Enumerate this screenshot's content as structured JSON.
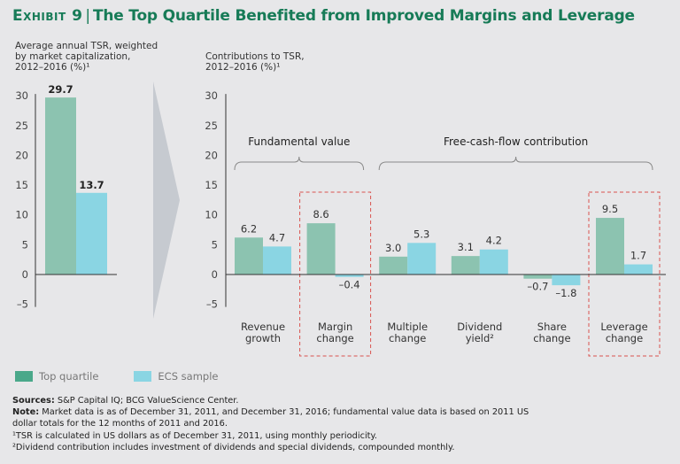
{
  "header": {
    "exhibit": "Exhibit 9",
    "separator": "|",
    "title": "The Top Quartile Benefited from Improved Margins and Leverage"
  },
  "colors": {
    "top_quartile": "#8cc3b0",
    "ecs_sample": "#8ad5e3",
    "title_green": "#177b57",
    "highlight_box": "#d9534f",
    "chevron": "#c6cad0",
    "axis": "#333333"
  },
  "left_subtitle": "Average annual TSR, weighted\nby market capitalization,\n2012–2016 (%)¹",
  "right_subtitle": "Contributions to TSR,\n2012–2016 (%)¹",
  "legend": [
    {
      "label": "Top quartile",
      "color_key": "top_quartile"
    },
    {
      "label": "ECS sample",
      "color_key": "ecs_sample"
    }
  ],
  "chart_data": [
    {
      "type": "bar",
      "title": "Average annual TSR, weighted by market capitalization, 2012–2016 (%)¹",
      "xlabel": "",
      "ylabel": "",
      "ylim": [
        -5,
        30
      ],
      "yticks": [
        30,
        25,
        20,
        15,
        10,
        5,
        0,
        -5
      ],
      "ytick_labels": [
        "30",
        "25",
        "20",
        "15",
        "10",
        "5",
        "0",
        "–5"
      ],
      "categories": [
        ""
      ],
      "series": [
        {
          "name": "Top quartile",
          "values": [
            29.7
          ],
          "labels": [
            "29.7"
          ]
        },
        {
          "name": "ECS sample",
          "values": [
            13.7
          ],
          "labels": [
            "13.7"
          ]
        }
      ],
      "grid": false,
      "legend": "bottom-left"
    },
    {
      "type": "bar",
      "title": "Contributions to TSR, 2012–2016 (%)¹",
      "xlabel": "",
      "ylabel": "",
      "ylim": [
        -5,
        30
      ],
      "yticks": [
        30,
        25,
        20,
        15,
        10,
        5,
        0,
        -5
      ],
      "ytick_labels": [
        "30",
        "25",
        "20",
        "15",
        "10",
        "5",
        "0",
        "–5"
      ],
      "categories": [
        [
          "Revenue",
          "growth"
        ],
        [
          "Margin",
          "change"
        ],
        [
          "Multiple",
          "change"
        ],
        [
          "Dividend",
          "yield²"
        ],
        [
          "Share",
          "change"
        ],
        [
          "Leverage",
          "change"
        ]
      ],
      "series": [
        {
          "name": "Top quartile",
          "values": [
            6.2,
            8.6,
            3.0,
            3.1,
            -0.7,
            9.5
          ],
          "labels": [
            "6.2",
            "8.6",
            "3.0",
            "3.1",
            "–0.7",
            "9.5"
          ]
        },
        {
          "name": "ECS sample",
          "values": [
            4.7,
            -0.4,
            5.3,
            4.2,
            -1.8,
            1.7
          ],
          "labels": [
            "4.7",
            "–0.4",
            "5.3",
            "4.2",
            "–1.8",
            "1.7"
          ]
        }
      ],
      "brackets": [
        {
          "label": "Fundamental value",
          "from_category": 0,
          "to_category": 1
        },
        {
          "label": "Free-cash-flow contribution",
          "from_category": 2,
          "to_category": 5
        }
      ],
      "highlighted_categories": [
        1,
        5
      ],
      "grid": false,
      "legend": "bottom-left"
    }
  ],
  "notes": {
    "sources_label": "Sources:",
    "sources_text": " S&P Capital IQ; BCG ValueScience Center.",
    "note_label": "Note:",
    "note_text": " Market data is as of December 31, 2011, and December 31, 2016; fundamental value data is based on 2011 US dollar totals for the 12 months of 2011 and 2016.",
    "footnote1": "¹TSR is calculated in US dollars as of December 31, 2011, using monthly periodicity.",
    "footnote2": "²Dividend contribution includes investment of dividends and special dividends, compounded monthly."
  }
}
